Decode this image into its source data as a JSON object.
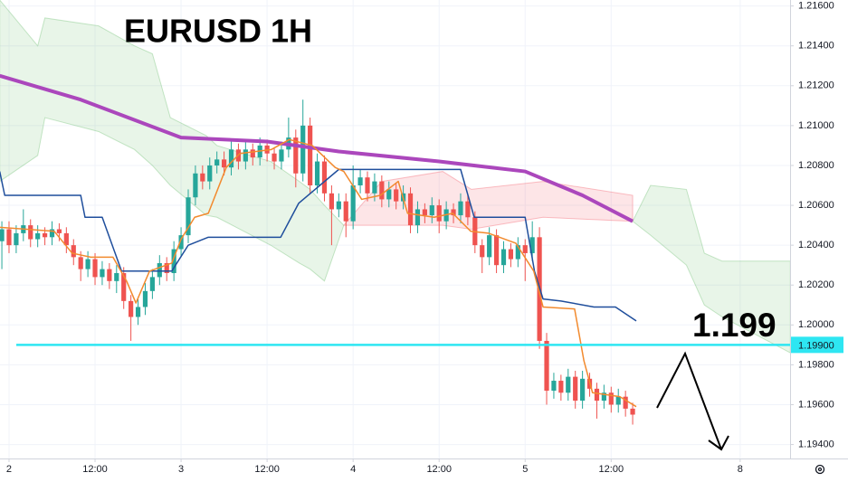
{
  "chart_data": {
    "type": "candlestick",
    "title": "EURUSD 1H",
    "annotation": "1.199",
    "up_color": "#26a69a",
    "down_color": "#ef5350",
    "grid": true,
    "xlim": [
      -1.26,
      108.96
    ],
    "ylim": [
      1.1933,
      1.2163
    ],
    "xticks": [
      {
        "value": 0,
        "label": "2"
      },
      {
        "value": 12,
        "label": "12:00"
      },
      {
        "value": 24,
        "label": "3"
      },
      {
        "value": 36,
        "label": "12:00"
      },
      {
        "value": 48,
        "label": "4"
      },
      {
        "value": 60,
        "label": "12:00"
      },
      {
        "value": 72,
        "label": "5"
      },
      {
        "value": 84,
        "label": "12:00"
      },
      {
        "value": 102,
        "label": "8"
      }
    ],
    "yticks": [
      {
        "value": 1.194,
        "label": "1.19400"
      },
      {
        "value": 1.196,
        "label": "1.19600"
      },
      {
        "value": 1.198,
        "label": "1.19800"
      },
      {
        "value": 1.2,
        "label": "1.20000"
      },
      {
        "value": 1.202,
        "label": "1.20200"
      },
      {
        "value": 1.204,
        "label": "1.20400"
      },
      {
        "value": 1.206,
        "label": "1.20600"
      },
      {
        "value": 1.208,
        "label": "1.20800"
      },
      {
        "value": 1.21,
        "label": "1.21000"
      },
      {
        "value": 1.212,
        "label": "1.21200"
      },
      {
        "value": 1.214,
        "label": "1.21400"
      },
      {
        "value": 1.216,
        "label": "1.21600"
      }
    ],
    "hline": {
      "value": 1.199,
      "label": "1.19900",
      "color": "#2ee6f2"
    },
    "clouds": [
      {
        "color": "#4caf50",
        "x": [
          -1.3,
          4,
          5,
          12.5,
          17.5,
          20,
          22.5,
          27.5,
          29,
          36.5,
          40.5,
          42,
          44,
          46.7
        ],
        "upper": [
          1.2163,
          1.214,
          1.2154,
          1.215,
          1.214,
          1.2136,
          1.2104,
          1.2095,
          1.209,
          1.2082,
          1.2072,
          1.2068,
          1.206,
          1.205
        ],
        "lower": [
          1.2072,
          1.2085,
          1.2104,
          1.2097,
          1.2088,
          1.208,
          1.207,
          1.2055,
          1.2054,
          1.204,
          1.2031,
          1.2028,
          1.2022,
          1.205
        ]
      },
      {
        "color": "#f23645",
        "x": [
          46.7,
          52,
          60.5,
          64.5,
          74.5,
          87
        ],
        "upper": [
          1.205,
          1.2072,
          1.2077,
          1.2068,
          1.2072,
          1.2065
        ],
        "lower": [
          1.205,
          1.205,
          1.205,
          1.2048,
          1.2054,
          1.2052
        ]
      },
      {
        "color": "#4caf50",
        "x": [
          87,
          89.5,
          94.5,
          97,
          99.5,
          109
        ],
        "upper": [
          1.2052,
          1.207,
          1.2068,
          1.2036,
          1.2032,
          1.2032
        ],
        "lower": [
          1.2052,
          1.2045,
          1.203,
          1.201,
          1.2004,
          1.1986
        ]
      }
    ],
    "lines": [
      {
        "color": "#ab47bc",
        "width": 4,
        "x": [
          -1.3,
          10,
          24,
          36,
          46,
          60,
          72,
          80,
          87
        ],
        "values": [
          1.2125,
          1.2113,
          1.2094,
          1.2092,
          1.2087,
          1.2082,
          1.2077,
          1.2065,
          1.2052
        ]
      },
      {
        "color": "#1f4e9c",
        "width": 1.5,
        "x": [
          -1.3,
          -0.6,
          10,
          10.6,
          13,
          15,
          15.7,
          22.7,
          25,
          27.8,
          37.9,
          40.4,
          46,
          63,
          64.9,
          72,
          73.3,
          74.5,
          77,
          81.6,
          84.6,
          87.5
        ],
        "values": [
          1.2077,
          1.2065,
          1.2065,
          1.2054,
          1.2054,
          1.2034,
          1.2027,
          1.2027,
          1.204,
          1.2044,
          1.2044,
          1.2061,
          1.2078,
          1.2078,
          1.2054,
          1.2054,
          1.2027,
          1.2013,
          1.2012,
          1.2009,
          1.2009,
          1.2002
        ]
      },
      {
        "color": "#f28a2e",
        "width": 1.5,
        "x": [
          -1.3,
          6.3,
          8.8,
          11.4,
          14.5,
          16.4,
          17.7,
          19.6,
          22.7,
          24,
          25.9,
          27.8,
          30.3,
          32.2,
          36.6,
          39.1,
          42.3,
          45.5,
          46.7,
          49.2,
          51.8,
          54.3,
          55.6,
          59.3,
          61.9,
          64.4,
          66.9,
          70.7,
          73.2,
          74.5,
          78.9,
          80.2,
          81.4,
          85.2,
          87.5
        ],
        "values": [
          1.2049,
          1.2047,
          1.2036,
          1.2034,
          1.2034,
          1.2022,
          1.2011,
          1.2027,
          1.2031,
          1.2043,
          1.2054,
          1.2056,
          1.2079,
          1.2086,
          1.2088,
          1.2093,
          1.209,
          1.2079,
          1.2077,
          1.2063,
          1.2065,
          1.2072,
          1.2056,
          1.2054,
          1.2056,
          1.2047,
          1.2046,
          1.2041,
          1.2027,
          1.2009,
          1.2008,
          1.1982,
          1.1966,
          1.1964,
          1.1959
        ]
      }
    ],
    "x": [
      -1,
      0,
      1,
      2,
      3,
      4,
      5,
      6,
      7,
      8,
      9,
      10,
      11,
      12,
      13,
      14,
      15,
      16,
      17,
      18,
      19,
      20,
      21,
      22,
      23,
      24,
      25,
      26,
      27,
      28,
      29,
      30,
      31,
      32,
      33,
      34,
      35,
      36,
      37,
      38,
      39,
      40,
      41,
      42,
      43,
      44,
      45,
      46,
      47,
      48,
      49,
      50,
      51,
      52,
      53,
      54,
      55,
      56,
      57,
      58,
      59,
      60,
      61,
      62,
      63,
      64,
      65,
      66,
      67,
      68,
      69,
      70,
      71,
      72,
      73,
      74,
      75,
      76,
      77,
      78,
      79,
      80,
      81,
      82,
      83,
      84,
      85,
      86,
      87
    ],
    "candles": [
      [
        1.2042,
        1.2052,
        1.2028,
        1.2048
      ],
      [
        1.2048,
        1.2052,
        1.2036,
        1.204
      ],
      [
        1.204,
        1.205,
        1.2036,
        1.2046
      ],
      [
        1.2046,
        1.2058,
        1.2042,
        1.205
      ],
      [
        1.205,
        1.2053,
        1.2039,
        1.2043
      ],
      [
        1.2043,
        1.205,
        1.2039,
        1.2046
      ],
      [
        1.2046,
        1.2049,
        1.204,
        1.2044
      ],
      [
        1.2044,
        1.2052,
        1.204,
        1.2048
      ],
      [
        1.2048,
        1.2051,
        1.2042,
        1.2046
      ],
      [
        1.2046,
        1.2049,
        1.2036,
        1.204
      ],
      [
        1.204,
        1.2043,
        1.203,
        1.2034
      ],
      [
        1.2034,
        1.2037,
        1.2022,
        1.2028
      ],
      [
        1.2028,
        1.2037,
        1.2024,
        1.2033
      ],
      [
        1.2033,
        1.2036,
        1.202,
        1.2024
      ],
      [
        1.2024,
        1.2032,
        1.202,
        1.2028
      ],
      [
        1.2028,
        1.2031,
        1.2018,
        1.2022
      ],
      [
        1.2022,
        1.203,
        1.2016,
        1.2026
      ],
      [
        1.2026,
        1.2029,
        1.2008,
        1.2012
      ],
      [
        1.2012,
        1.2015,
        1.1992,
        1.2004
      ],
      [
        1.2004,
        1.2013,
        1.2,
        1.2009
      ],
      [
        1.2009,
        1.2021,
        1.2005,
        1.2017
      ],
      [
        1.2017,
        1.2028,
        1.2013,
        1.2024
      ],
      [
        1.2024,
        1.2035,
        1.202,
        1.2031
      ],
      [
        1.2031,
        1.2034,
        1.2022,
        1.2026
      ],
      [
        1.2026,
        1.2042,
        1.2022,
        1.2038
      ],
      [
        1.2038,
        1.2049,
        1.2034,
        1.2045
      ],
      [
        1.2045,
        1.2068,
        1.2041,
        1.2064
      ],
      [
        1.2064,
        1.208,
        1.206,
        1.2076
      ],
      [
        1.2076,
        1.208,
        1.2068,
        1.2072
      ],
      [
        1.2072,
        1.2084,
        1.2068,
        1.208
      ],
      [
        1.208,
        1.2087,
        1.2076,
        1.2083
      ],
      [
        1.2083,
        1.2087,
        1.2075,
        1.2079
      ],
      [
        1.2079,
        1.2092,
        1.2075,
        1.2088
      ],
      [
        1.2088,
        1.2091,
        1.2078,
        1.2082
      ],
      [
        1.2082,
        1.2092,
        1.2078,
        1.2088
      ],
      [
        1.2088,
        1.2091,
        1.208,
        1.2084
      ],
      [
        1.2084,
        1.2094,
        1.208,
        1.209
      ],
      [
        1.209,
        1.2093,
        1.2082,
        1.2086
      ],
      [
        1.2086,
        1.2089,
        1.2078,
        1.2082
      ],
      [
        1.2082,
        1.2092,
        1.2078,
        1.2088
      ],
      [
        1.2088,
        1.2104,
        1.2084,
        1.2094
      ],
      [
        1.2094,
        1.2098,
        1.2069,
        1.2076
      ],
      [
        1.2076,
        1.2113,
        1.2072,
        1.21
      ],
      [
        1.21,
        1.2104,
        1.2066,
        1.207
      ],
      [
        1.207,
        1.2086,
        1.2066,
        1.2082
      ],
      [
        1.2082,
        1.2085,
        1.2062,
        1.2066
      ],
      [
        1.2066,
        1.207,
        1.204,
        1.2058
      ],
      [
        1.2058,
        1.2066,
        1.2054,
        1.2062
      ],
      [
        1.2062,
        1.2066,
        1.2044,
        1.2052
      ],
      [
        1.2052,
        1.208,
        1.2048,
        1.207
      ],
      [
        1.207,
        1.2078,
        1.2066,
        1.2074
      ],
      [
        1.2074,
        1.2077,
        1.2062,
        1.2066
      ],
      [
        1.2066,
        1.2076,
        1.2062,
        1.2072
      ],
      [
        1.2072,
        1.2075,
        1.2059,
        1.2063
      ],
      [
        1.2063,
        1.2072,
        1.2059,
        1.2068
      ],
      [
        1.2068,
        1.2071,
        1.2058,
        1.2062
      ],
      [
        1.2062,
        1.207,
        1.2058,
        1.2066
      ],
      [
        1.2066,
        1.2069,
        1.2046,
        1.205
      ],
      [
        1.205,
        1.2062,
        1.2046,
        1.2058
      ],
      [
        1.2058,
        1.2061,
        1.2051,
        1.2055
      ],
      [
        1.2055,
        1.2064,
        1.2051,
        1.206
      ],
      [
        1.206,
        1.2063,
        1.2046,
        1.2052
      ],
      [
        1.2052,
        1.2062,
        1.2048,
        1.2058
      ],
      [
        1.2058,
        1.2061,
        1.2051,
        1.2055
      ],
      [
        1.2055,
        1.2066,
        1.2051,
        1.2062
      ],
      [
        1.2062,
        1.2065,
        1.205,
        1.2054
      ],
      [
        1.2054,
        1.2057,
        1.2036,
        1.204
      ],
      [
        1.204,
        1.2043,
        1.2026,
        1.2034
      ],
      [
        1.2034,
        1.2049,
        1.203,
        1.2045
      ],
      [
        1.2045,
        1.2048,
        1.2026,
        1.203
      ],
      [
        1.203,
        1.2042,
        1.2026,
        1.2038
      ],
      [
        1.2038,
        1.2041,
        1.2029,
        1.2033
      ],
      [
        1.2033,
        1.2044,
        1.2029,
        1.204
      ],
      [
        1.204,
        1.2043,
        1.2022,
        1.2036
      ],
      [
        1.2036,
        1.2052,
        1.2032,
        1.2044
      ],
      [
        1.2044,
        1.2049,
        1.1988,
        1.1992
      ],
      [
        1.1992,
        1.1996,
        1.196,
        1.1967
      ],
      [
        1.1967,
        1.1976,
        1.1963,
        1.1972
      ],
      [
        1.1972,
        1.1975,
        1.1962,
        1.1966
      ],
      [
        1.1966,
        1.1978,
        1.1962,
        1.1974
      ],
      [
        1.1974,
        1.1977,
        1.1958,
        1.1962
      ],
      [
        1.1962,
        1.1977,
        1.1958,
        1.1973
      ],
      [
        1.1973,
        1.1976,
        1.1964,
        1.1968
      ],
      [
        1.1968,
        1.1971,
        1.1953,
        1.1962
      ],
      [
        1.1962,
        1.197,
        1.1958,
        1.1966
      ],
      [
        1.1966,
        1.1969,
        1.1956,
        1.196
      ],
      [
        1.196,
        1.1968,
        1.1956,
        1.1964
      ],
      [
        1.1964,
        1.1967,
        1.1954,
        1.1958
      ],
      [
        1.1958,
        1.1961,
        1.195,
        1.1955
      ]
    ]
  }
}
